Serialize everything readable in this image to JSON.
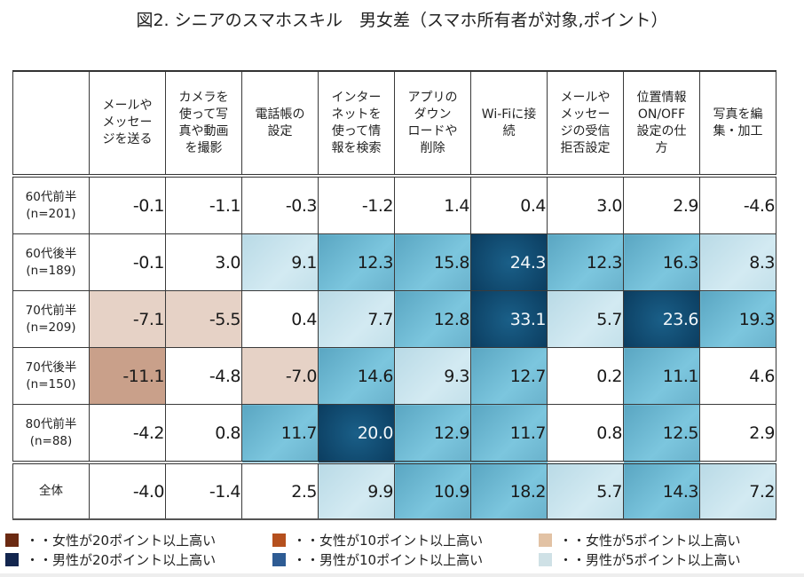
{
  "title": "図2. シニアのスマホスキル　男女差（スマホ所有者が対象,ポイント）",
  "chart_data": {
    "type": "heatmap",
    "title": "図2. シニアのスマホスキル　男女差（スマホ所有者が対象,ポイント）",
    "unit": "ポイント",
    "columns": [
      "メールや\nメッセー\nジを送る",
      "カメラを\n使って写\n真や動画\nを撮影",
      "電話帳の\n設定",
      "インター\nネットを\n使って情\n報を検索",
      "アプリの\nダウン\nロードや\n削除",
      "Wi-Fiに接\n続",
      "メールや\nメッセー\nジの受信\n拒否設定",
      "位置情報\nON/OFF\n設定の仕\n方",
      "写真を編\n集・加工"
    ],
    "rows": [
      {
        "label": "60代前半\n(n=201)",
        "values": [
          -0.1,
          -1.1,
          -0.3,
          -1.2,
          1.4,
          0.4,
          3.0,
          2.9,
          -4.6
        ]
      },
      {
        "label": "60代後半\n(n=189)",
        "values": [
          -0.1,
          3.0,
          9.1,
          12.3,
          15.8,
          24.3,
          12.3,
          16.3,
          8.3
        ]
      },
      {
        "label": "70代前半\n(n=209)",
        "values": [
          -7.1,
          -5.5,
          0.4,
          7.7,
          12.8,
          33.1,
          5.7,
          23.6,
          19.3
        ]
      },
      {
        "label": "70代後半\n(n=150)",
        "values": [
          -11.1,
          -4.8,
          -7.0,
          14.6,
          9.3,
          12.7,
          0.2,
          11.1,
          4.6
        ]
      },
      {
        "label": "80代前半\n(n=88)",
        "values": [
          -4.2,
          0.8,
          11.7,
          20.0,
          12.9,
          11.7,
          0.8,
          12.5,
          2.9
        ]
      },
      {
        "label": "全体",
        "values": [
          -4.0,
          -1.4,
          2.5,
          9.9,
          10.9,
          18.2,
          5.7,
          14.3,
          7.2
        ]
      }
    ],
    "color_scale": {
      "female_20": "#6b2a12",
      "female_10": "#c9a08a",
      "female_5": "#e6d2c6",
      "neutral": "#ffffff",
      "male_5": "#c4e0ea",
      "male_10": "#6db6d0",
      "male_20": "#0d4468"
    },
    "legend": [
      {
        "label": "・・女性が20ポイント以上高い",
        "color": "#6b2a12"
      },
      {
        "label": "・・女性が10ポイント以上高い",
        "color": "#b5501e"
      },
      {
        "label": "・・女性が5ポイント以上高い",
        "color": "#e2c2a4"
      },
      {
        "label": "・・男性が20ポイント以上高い",
        "color": "#13264f"
      },
      {
        "label": "・・男性が10ポイント以上高い",
        "color": "#2e5c94"
      },
      {
        "label": "・・男性が5ポイント以上高い",
        "color": "#cfe1e6"
      }
    ],
    "legend_position": "bottom"
  }
}
